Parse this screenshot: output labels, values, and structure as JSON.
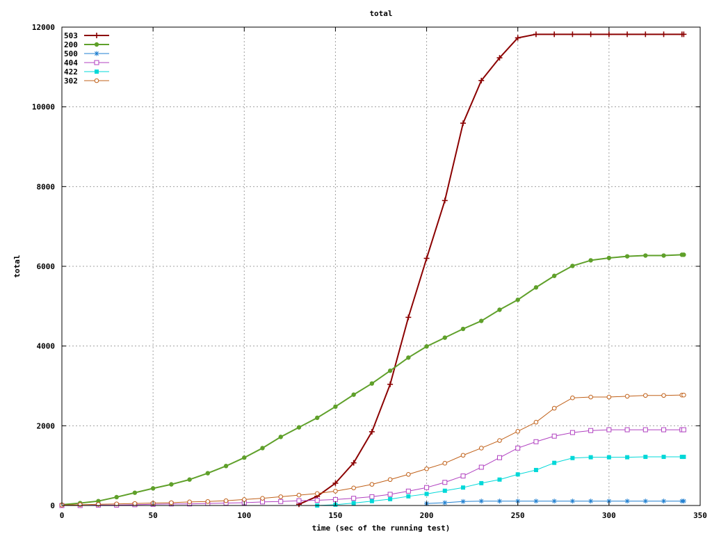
{
  "chart_data": {
    "type": "line",
    "title": "total",
    "xlabel": "time (sec of the running test)",
    "ylabel": "total",
    "xlim": [
      0,
      350
    ],
    "ylim": [
      0,
      12000
    ],
    "xticks": [
      "0",
      "50",
      "100",
      "150",
      "200",
      "250",
      "300",
      "350"
    ],
    "yticks": [
      "0",
      "2000",
      "4000",
      "6000",
      "8000",
      "10000",
      "12000"
    ],
    "grid": true,
    "legend_position": "top-left",
    "series": [
      {
        "name": "503",
        "color": "#8b0000",
        "marker": "plus",
        "width": 2,
        "x": [
          130,
          140,
          150,
          160,
          170,
          180,
          190,
          200,
          210,
          220,
          230,
          240,
          250,
          260,
          270,
          280,
          290,
          300,
          310,
          320,
          330,
          340,
          341
        ],
        "y": [
          30,
          230,
          560,
          1070,
          1850,
          3040,
          4720,
          6200,
          7650,
          9590,
          10660,
          11230,
          11730,
          11820,
          11820,
          11820,
          11820,
          11820,
          11820,
          11820,
          11820,
          11820,
          11820
        ]
      },
      {
        "name": "200",
        "color": "#5fa02a",
        "marker": "filled-circle",
        "width": 2,
        "x": [
          0,
          10,
          20,
          30,
          40,
          50,
          60,
          70,
          80,
          90,
          100,
          110,
          120,
          130,
          140,
          150,
          160,
          170,
          180,
          190,
          200,
          210,
          220,
          230,
          240,
          250,
          260,
          270,
          280,
          290,
          300,
          310,
          320,
          330,
          340,
          341
        ],
        "y": [
          20,
          60,
          110,
          210,
          320,
          430,
          530,
          650,
          810,
          990,
          1200,
          1440,
          1720,
          1960,
          2200,
          2480,
          2780,
          3060,
          3380,
          3710,
          3990,
          4210,
          4430,
          4630,
          4910,
          5160,
          5470,
          5760,
          6010,
          6150,
          6210,
          6250,
          6270,
          6270,
          6290,
          6290
        ]
      },
      {
        "name": "500",
        "color": "#1f7fd0",
        "marker": "asterisk",
        "width": 1,
        "x": [
          200,
          210,
          220,
          230,
          240,
          250,
          260,
          270,
          280,
          290,
          300,
          310,
          320,
          330,
          340,
          341
        ],
        "y": [
          50,
          70,
          100,
          110,
          110,
          110,
          110,
          110,
          110,
          110,
          110,
          110,
          110,
          110,
          110,
          110
        ]
      },
      {
        "name": "404",
        "color": "#b040c0",
        "marker": "open-square",
        "width": 1,
        "x": [
          0,
          10,
          20,
          30,
          40,
          50,
          60,
          70,
          80,
          90,
          100,
          110,
          120,
          130,
          140,
          150,
          160,
          170,
          180,
          190,
          200,
          210,
          220,
          230,
          240,
          250,
          260,
          270,
          280,
          290,
          300,
          310,
          320,
          330,
          340,
          341
        ],
        "y": [
          0,
          0,
          10,
          10,
          20,
          30,
          40,
          40,
          50,
          60,
          70,
          90,
          100,
          120,
          130,
          150,
          180,
          220,
          280,
          360,
          450,
          580,
          740,
          960,
          1200,
          1440,
          1600,
          1740,
          1830,
          1880,
          1900,
          1900,
          1900,
          1900,
          1900,
          1900
        ]
      },
      {
        "name": "422",
        "color": "#00d8d8",
        "marker": "filled-square",
        "width": 1,
        "x": [
          140,
          150,
          160,
          170,
          180,
          190,
          200,
          210,
          220,
          230,
          240,
          250,
          260,
          270,
          280,
          290,
          300,
          310,
          320,
          330,
          340,
          341
        ],
        "y": [
          0,
          20,
          60,
          110,
          160,
          230,
          290,
          370,
          450,
          560,
          650,
          780,
          890,
          1070,
          1190,
          1210,
          1210,
          1210,
          1220,
          1220,
          1220,
          1220
        ]
      },
      {
        "name": "302",
        "color": "#c06018",
        "marker": "open-circle",
        "width": 1,
        "x": [
          0,
          10,
          20,
          30,
          40,
          50,
          60,
          70,
          80,
          90,
          100,
          110,
          120,
          130,
          140,
          150,
          160,
          170,
          180,
          190,
          200,
          210,
          220,
          230,
          240,
          250,
          260,
          270,
          280,
          290,
          300,
          310,
          320,
          330,
          340,
          341
        ],
        "y": [
          10,
          20,
          30,
          40,
          50,
          60,
          70,
          90,
          100,
          120,
          150,
          180,
          220,
          260,
          300,
          360,
          440,
          530,
          650,
          780,
          920,
          1060,
          1260,
          1440,
          1630,
          1860,
          2090,
          2440,
          2700,
          2720,
          2720,
          2740,
          2760,
          2760,
          2770,
          2770
        ]
      }
    ]
  }
}
